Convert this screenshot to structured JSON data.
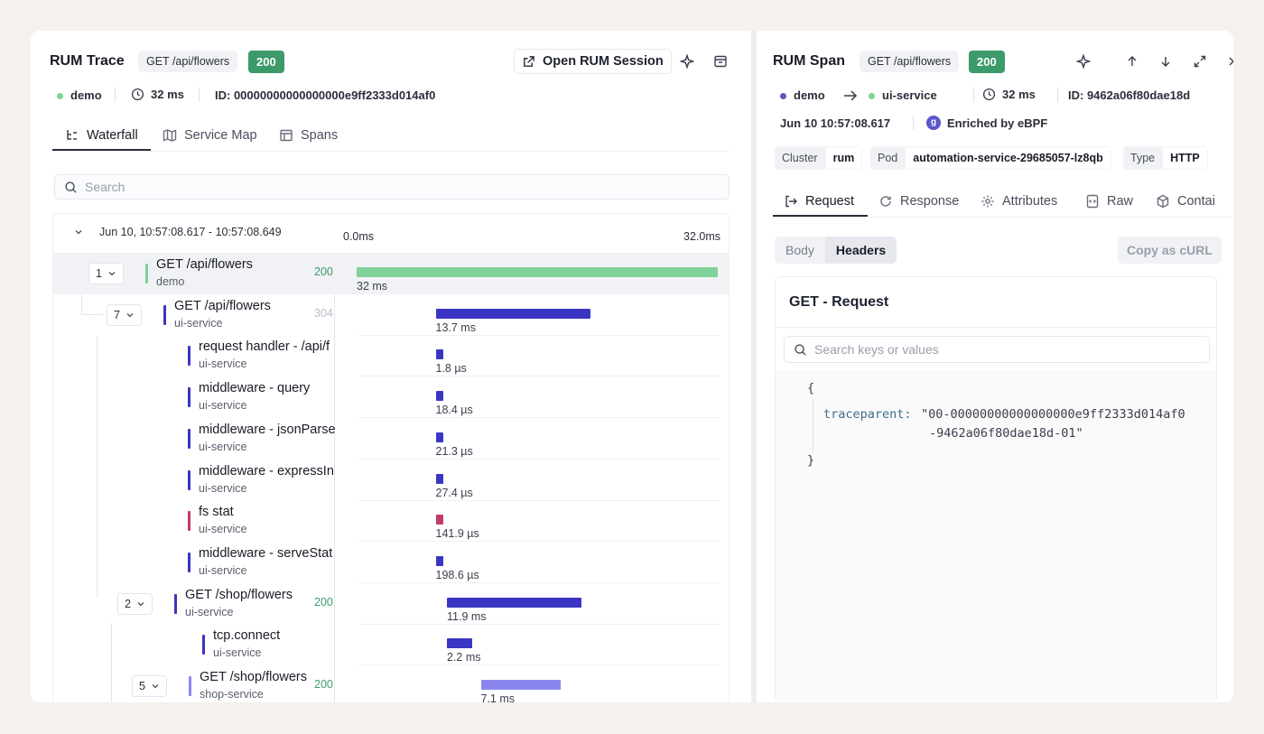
{
  "trace": {
    "title": "RUM Trace",
    "method_path": "GET /api/flowers",
    "status": "200",
    "open_session_label": "Open RUM Session",
    "service": "demo",
    "duration": "32 ms",
    "id_text": "ID: 00000000000000000e9ff2333d014af0",
    "tabs": [
      {
        "label": "Waterfall",
        "icon": "waterfall-icon",
        "active": true
      },
      {
        "label": "Service Map",
        "icon": "map-icon",
        "active": false
      },
      {
        "label": "Spans",
        "icon": "table-icon",
        "active": false
      }
    ],
    "search_placeholder": "Search",
    "range_label": "Jun 10, 10:57:08.617 - 10:57:08.649",
    "axis_start": "0.0ms",
    "axis_end": "32.0ms",
    "spans": [
      {
        "count": "1",
        "name": "GET /api/flowers",
        "service": "demo",
        "status": "200",
        "duration": "32 ms",
        "start_ms": 0,
        "length_ms": 32,
        "color": "#7fd39a",
        "depth": 0
      },
      {
        "count": "7",
        "name": "GET /api/flowers",
        "service": "ui-service",
        "status": "304",
        "duration": "13.7 ms",
        "start_ms": 7.0,
        "length_ms": 13.7,
        "color": "#3b35c3",
        "depth": 1
      },
      {
        "count": "",
        "name": "request handler - /api/f",
        "service": "ui-service",
        "status": "",
        "duration": "1.8 µs",
        "start_ms": 7.0,
        "length_ms": 0.6,
        "color": "#3b35c3",
        "depth": 2
      },
      {
        "count": "",
        "name": "middleware - query",
        "service": "ui-service",
        "status": "",
        "duration": "18.4 µs",
        "start_ms": 7.0,
        "length_ms": 0.6,
        "color": "#3b35c3",
        "depth": 2
      },
      {
        "count": "",
        "name": "middleware - jsonParse",
        "service": "ui-service",
        "status": "",
        "duration": "21.3 µs",
        "start_ms": 7.0,
        "length_ms": 0.6,
        "color": "#3b35c3",
        "depth": 2
      },
      {
        "count": "",
        "name": "middleware - expressIn",
        "service": "ui-service",
        "status": "",
        "duration": "27.4 µs",
        "start_ms": 7.0,
        "length_ms": 0.6,
        "color": "#3b35c3",
        "depth": 2
      },
      {
        "count": "",
        "name": "fs stat",
        "service": "ui-service",
        "status": "",
        "duration": "141.9 µs",
        "start_ms": 7.0,
        "length_ms": 0.6,
        "color": "#c23b6a",
        "depth": 2
      },
      {
        "count": "",
        "name": "middleware - serveStat",
        "service": "ui-service",
        "status": "",
        "duration": "198.6 µs",
        "start_ms": 7.0,
        "length_ms": 0.6,
        "color": "#3b35c3",
        "depth": 2
      },
      {
        "count": "2",
        "name": "GET /shop/flowers",
        "service": "ui-service",
        "status": "200",
        "duration": "11.9 ms",
        "start_ms": 8.0,
        "length_ms": 11.9,
        "color": "#3b35c3",
        "depth": 2
      },
      {
        "count": "",
        "name": "tcp.connect",
        "service": "ui-service",
        "status": "",
        "duration": "2.2 ms",
        "start_ms": 8.0,
        "length_ms": 2.2,
        "color": "#3b35c3",
        "depth": 3
      },
      {
        "count": "5",
        "name": "GET /shop/flowers",
        "service": "shop-service",
        "status": "200",
        "duration": "7.1 ms",
        "start_ms": 11.0,
        "length_ms": 7.1,
        "color": "#8b86ee",
        "depth": 3
      }
    ]
  },
  "span_panel": {
    "title": "RUM Span",
    "method_path": "GET /api/flowers",
    "status": "200",
    "from_service": "demo",
    "to_service": "ui-service",
    "duration": "32 ms",
    "id_text": "ID: 9462a06f80dae18d",
    "timestamp": "Jun 10 10:57:08.617",
    "enriched": "Enriched by eBPF",
    "tags": [
      {
        "key": "Cluster",
        "value": "rum"
      },
      {
        "key": "Pod",
        "value": "automation-service-29685057-lz8qb"
      },
      {
        "key": "Type",
        "value": "HTTP"
      }
    ],
    "tabs": [
      {
        "label": "Request",
        "icon": "request-icon",
        "active": true
      },
      {
        "label": "Response",
        "icon": "response-icon",
        "active": false
      },
      {
        "label": "Attributes",
        "icon": "gear-icon",
        "active": false
      },
      {
        "label": "Raw",
        "icon": "code-icon",
        "active": false
      },
      {
        "label": "Contai",
        "icon": "cube-icon",
        "active": false
      }
    ],
    "body_label": "Body",
    "headers_label": "Headers",
    "copy_curl_label": "Copy as cURL",
    "request_title": "GET - Request",
    "search_placeholder": "Search keys or values",
    "json_open": "{",
    "json_key": "traceparent:",
    "json_value_line1": "\"00-00000000000000000e9ff2333d014af0",
    "json_value_line2": "-9462a06f80dae18d-01\"",
    "json_close": "}"
  },
  "colors": {
    "status_green": "#3d9a6a",
    "bar_root": "#7fd39a",
    "bar_primary": "#3b35c3",
    "bar_light": "#8b86ee",
    "service_dot_purple": "#5b56c9"
  }
}
